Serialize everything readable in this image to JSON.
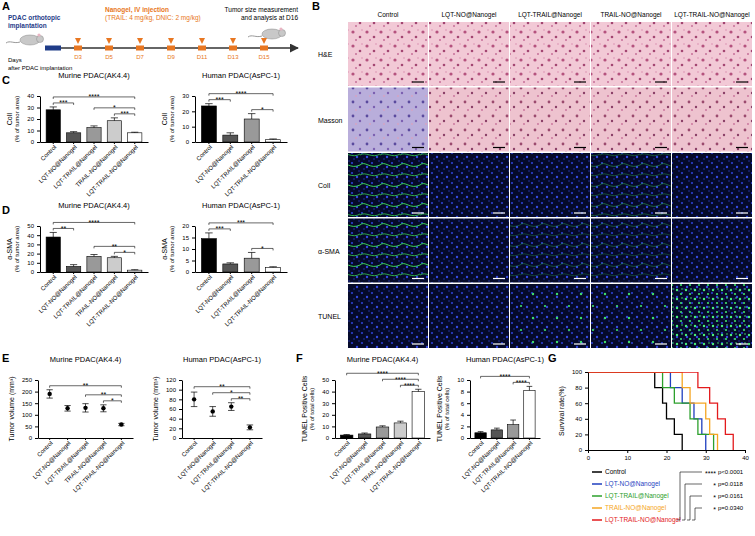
{
  "panel_labels": [
    "A",
    "B",
    "C",
    "D",
    "E",
    "F",
    "G"
  ],
  "schematic": {
    "implantation": [
      "PDAC orthotopic",
      "implantation"
    ],
    "injection": [
      "Nanogel, IV injection",
      "(TRAIL: 4 mg/kg, DNIC: 2 mg/kg)"
    ],
    "endpoint": [
      "Tumor size measurement",
      "and analysis at D16"
    ],
    "axis_label": [
      "Days",
      "after PDAC implantation"
    ],
    "days": [
      "D3",
      "D5",
      "D7",
      "D9",
      "D11",
      "D13",
      "D15"
    ]
  },
  "image_panel": {
    "columns": [
      "Control",
      "LQT-NO@Nanogel",
      "LQT-TRAIL@Nanogel",
      "TRAIL-NO@Nanogel",
      "LQT-TRAIL-NO@Nanogel"
    ],
    "rows": [
      "H&E",
      "Masson",
      "ColI",
      "α-SMA",
      "TUNEL"
    ]
  },
  "chart_data": [
    {
      "type": "bar",
      "title": "Murine PDAC(AK4.4)",
      "y_label": "ColI",
      "y_label_sub": "(% of tumor area)",
      "categories": [
        "Control",
        "LQT-NO@Nanogel",
        "LQT-TRAIL@Nanogel",
        "TRAIL-NO@Nanogel",
        "LQT-TRAIL-NO@Nanogel"
      ],
      "values": [
        28,
        8,
        12.5,
        18.5,
        8
      ],
      "errors": [
        2.5,
        1,
        1.5,
        2.5,
        0.5
      ],
      "colors": [
        "#000000",
        "#555555",
        "#999999",
        "#cccccc",
        "#ffffff"
      ],
      "ylim": [
        0,
        40
      ],
      "yticks": [
        0,
        10,
        20,
        30,
        40
      ],
      "significance": [
        {
          "from": 0,
          "to": 1,
          "label": "***"
        },
        {
          "from": 3,
          "to": 4,
          "label": "***"
        },
        {
          "from": 2,
          "to": 4,
          "label": "*"
        },
        {
          "from": 0,
          "to": 4,
          "label": "****"
        }
      ]
    },
    {
      "type": "bar",
      "title": "Human PDAC(AsPC-1)",
      "y_label": "ColI",
      "y_label_sub": "(% of tumor area)",
      "categories": [
        "Control",
        "LQT-NO@Nanogel",
        "LQT-TRAIL@Nanogel",
        "LQT-TRAIL-NO@Nanogel"
      ],
      "values": [
        23.5,
        4.5,
        15,
        1.5
      ],
      "errors": [
        1.5,
        1.5,
        3.5,
        0.5
      ],
      "colors": [
        "#000000",
        "#555555",
        "#999999",
        "#ffffff"
      ],
      "ylim": [
        0,
        30
      ],
      "yticks": [
        0,
        10,
        20,
        30
      ],
      "significance": [
        {
          "from": 0,
          "to": 1,
          "label": "***"
        },
        {
          "from": 2,
          "to": 3,
          "label": "*"
        },
        {
          "from": 0,
          "to": 3,
          "label": "****"
        }
      ]
    },
    {
      "type": "bar",
      "title": "Murine PDAC(AK4.4)",
      "y_label": "α-SMA",
      "y_label_sub": "(% of tumor area)",
      "categories": [
        "Control",
        "LQT-NO@Nanogel",
        "LQT-TRAIL@Nanogel",
        "TRAIL-NO@Nanogel",
        "LQT-TRAIL-NO@Nanogel"
      ],
      "values": [
        38,
        6,
        17,
        15.5,
        2
      ],
      "errors": [
        5,
        2,
        2,
        1.5,
        0.5
      ],
      "colors": [
        "#000000",
        "#555555",
        "#999999",
        "#cccccc",
        "#ffffff"
      ],
      "ylim": [
        0,
        50
      ],
      "yticks": [
        0,
        10,
        20,
        30,
        40,
        50
      ],
      "significance": [
        {
          "from": 0,
          "to": 1,
          "label": "**"
        },
        {
          "from": 3,
          "to": 4,
          "label": "*"
        },
        {
          "from": 2,
          "to": 4,
          "label": "**"
        },
        {
          "from": 0,
          "to": 4,
          "label": "****"
        }
      ]
    },
    {
      "type": "bar",
      "title": "Human PDAC(AsPC-1)",
      "y_label": "α-SMA",
      "y_label_sub": "(% of tumor area)",
      "categories": [
        "Control",
        "LQT-NO@Nanogel",
        "LQT-TRAIL@Nanogel",
        "LQT-TRAIL-NO@Nanogel"
      ],
      "values": [
        14.5,
        3.5,
        6,
        2
      ],
      "errors": [
        2.5,
        0.5,
        2.5,
        0.3
      ],
      "colors": [
        "#000000",
        "#555555",
        "#999999",
        "#ffffff"
      ],
      "ylim": [
        0,
        20
      ],
      "yticks": [
        0,
        5,
        10,
        15,
        20
      ],
      "significance": [
        {
          "from": 0,
          "to": 1,
          "label": "***"
        },
        {
          "from": 2,
          "to": 3,
          "label": "*"
        },
        {
          "from": 0,
          "to": 3,
          "label": "***"
        }
      ]
    },
    {
      "type": "scatter",
      "title": "Murine PDAC(AK4.4)",
      "y_label": "Tumor volume (mm³)",
      "categories": [
        "Control",
        "LQT-NO@Nanogel",
        "LQT-TRAIL@Nanogel",
        "TRAIL-NO@Nanogel",
        "LQT-TRAIL-NO@Nanogel"
      ],
      "values": [
        190,
        128,
        130,
        128,
        58
      ],
      "errors": [
        18,
        12,
        18,
        15,
        5
      ],
      "color": "#000000",
      "marker": "circle",
      "ylim": [
        0,
        250
      ],
      "yticks": [
        0,
        50,
        100,
        150,
        200,
        250
      ],
      "significance": [
        {
          "from": 3,
          "to": 4,
          "label": "*"
        },
        {
          "from": 2,
          "to": 4,
          "label": "**"
        },
        {
          "from": 0,
          "to": 4,
          "label": "**"
        }
      ]
    },
    {
      "type": "scatter",
      "title": "Human PDAC(AsPC-1)",
      "y_label": "Tumor volume (mm³)",
      "categories": [
        "Control",
        "LQT-NO@Nanogel",
        "LQT-TRAIL@Nanogel",
        "LQT-TRAIL-NO@Nanogel"
      ],
      "values": [
        80,
        55,
        65,
        22
      ],
      "errors": [
        15,
        10,
        8,
        5
      ],
      "color": "#000000",
      "marker": "circle",
      "ylim": [
        0,
        120
      ],
      "yticks": [
        0,
        20,
        40,
        60,
        80,
        100,
        120
      ],
      "significance": [
        {
          "from": 2,
          "to": 3,
          "label": "**"
        },
        {
          "from": 1,
          "to": 3,
          "label": "*"
        },
        {
          "from": 0,
          "to": 3,
          "label": "**"
        }
      ]
    },
    {
      "type": "bar",
      "title": "Murine PDAC(AK4.4)",
      "y_label": "TUNEL Positive Cells",
      "y_label_sub": "(% of total cells)",
      "categories": [
        "Control",
        "LQT-NO@Nanogel",
        "LQT-TRAIL@Nanogel",
        "TRAIL-NO@Nanogel",
        "LQT-TRAIL-NO@Nanogel"
      ],
      "values": [
        2.5,
        3.5,
        9.5,
        13,
        40
      ],
      "errors": [
        0.5,
        0.8,
        1,
        1.5,
        2
      ],
      "colors": [
        "#000000",
        "#555555",
        "#999999",
        "#cccccc",
        "#ffffff"
      ],
      "ylim": [
        0,
        50
      ],
      "yticks": [
        0,
        10,
        20,
        30,
        40,
        50
      ],
      "significance": [
        {
          "from": 3,
          "to": 4,
          "label": "****"
        },
        {
          "from": 2,
          "to": 4,
          "label": "****"
        },
        {
          "from": 0,
          "to": 4,
          "label": "****"
        }
      ]
    },
    {
      "type": "bar",
      "title": "Human PDAC(AsPC-1)",
      "y_label": "TUNEL Positive Cells",
      "y_label_sub": "(% of total cells)",
      "categories": [
        "Control",
        "LQT-NO@Nanogel",
        "LQT-TRAIL@Nanogel",
        "LQT-TRAIL-NO@Nanogel"
      ],
      "values": [
        0.9,
        1.4,
        2.3,
        8.2
      ],
      "errors": [
        0.2,
        0.3,
        0.8,
        0.7
      ],
      "colors": [
        "#000000",
        "#555555",
        "#999999",
        "#ffffff"
      ],
      "ylim": [
        0,
        10
      ],
      "yticks": [
        0,
        2,
        4,
        6,
        8,
        10
      ],
      "significance": [
        {
          "from": 2,
          "to": 3,
          "label": "****"
        },
        {
          "from": 0,
          "to": 3,
          "label": "****"
        }
      ]
    },
    {
      "type": "line",
      "y_label": "Survival rate(%)",
      "line_style": "step",
      "legend": "bottom",
      "xlim": [
        0,
        40
      ],
      "xticks": [
        0,
        10,
        20,
        30,
        40
      ],
      "ylim": [
        0,
        100
      ],
      "yticks": [
        0,
        20,
        40,
        60,
        80,
        100
      ],
      "series": [
        {
          "name": "Control",
          "color": "#000000",
          "x": [
            0,
            17,
            19,
            20,
            22,
            24
          ],
          "values": [
            100,
            80,
            60,
            40,
            20,
            0
          ]
        },
        {
          "name": "LQT-NO@Nanogel",
          "color": "#1f3fbf",
          "x": [
            0,
            21,
            24,
            27,
            29,
            30
          ],
          "values": [
            100,
            80,
            60,
            40,
            20,
            0
          ]
        },
        {
          "name": "LQT-TRAIL@Nanogel",
          "color": "#2ca02c",
          "x": [
            0,
            19,
            22,
            26,
            28,
            32
          ],
          "values": [
            100,
            80,
            60,
            40,
            20,
            0
          ]
        },
        {
          "name": "TRAIL-NO@Nanogel",
          "color": "#f5a623",
          "x": [
            0,
            24,
            26,
            30,
            31,
            33
          ],
          "values": [
            100,
            80,
            60,
            40,
            20,
            0
          ]
        },
        {
          "name": "LQT-TRAIL-NO@Nanogel",
          "color": "#e31a1c",
          "x": [
            0,
            28,
            31,
            33,
            35,
            37
          ],
          "values": [
            100,
            80,
            60,
            40,
            20,
            0
          ]
        }
      ],
      "comparisons": [
        {
          "from": 0,
          "to": 4,
          "label": "****",
          "p": "p<0.0001"
        },
        {
          "from": 1,
          "to": 4,
          "label": "*",
          "p": "p=0.0118"
        },
        {
          "from": 2,
          "to": 4,
          "label": "*",
          "p": "p=0.0161"
        },
        {
          "from": 3,
          "to": 4,
          "label": "*",
          "p": "p=0.0340"
        }
      ]
    }
  ]
}
